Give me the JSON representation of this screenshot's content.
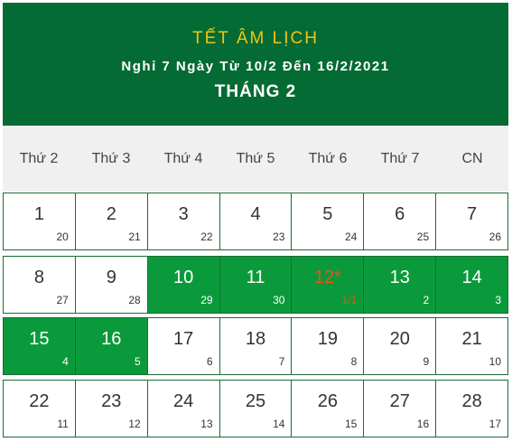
{
  "header": {
    "title": "TẾT ÂM LỊCH",
    "subtitle": "Nghỉ 7 Ngày Từ 10/2 Đến 16/2/2021",
    "month": "THÁNG 2"
  },
  "colors": {
    "header_bg": "#056b34",
    "holiday_bg": "#0b9a3b",
    "title": "#f1c40f",
    "special": "#e8531a"
  },
  "weekdays": [
    "Thứ 2",
    "Thứ 3",
    "Thứ 4",
    "Thứ 5",
    "Thứ 6",
    "Thứ 7",
    "CN"
  ],
  "weeks": [
    [
      {
        "solar": "1",
        "lunar": "20"
      },
      {
        "solar": "2",
        "lunar": "21"
      },
      {
        "solar": "3",
        "lunar": "22"
      },
      {
        "solar": "4",
        "lunar": "23"
      },
      {
        "solar": "5",
        "lunar": "24"
      },
      {
        "solar": "6",
        "lunar": "25"
      },
      {
        "solar": "7",
        "lunar": "26"
      }
    ],
    [
      {
        "solar": "8",
        "lunar": "27"
      },
      {
        "solar": "9",
        "lunar": "28"
      },
      {
        "solar": "10",
        "lunar": "29",
        "holiday": true
      },
      {
        "solar": "11",
        "lunar": "30",
        "holiday": true
      },
      {
        "solar": "12*",
        "lunar": "1/1",
        "holiday": true,
        "special": true
      },
      {
        "solar": "13",
        "lunar": "2",
        "holiday": true
      },
      {
        "solar": "14",
        "lunar": "3",
        "holiday": true
      }
    ],
    [
      {
        "solar": "15",
        "lunar": "4",
        "holiday": true
      },
      {
        "solar": "16",
        "lunar": "5",
        "holiday": true
      },
      {
        "solar": "17",
        "lunar": "6"
      },
      {
        "solar": "18",
        "lunar": "7"
      },
      {
        "solar": "19",
        "lunar": "8"
      },
      {
        "solar": "20",
        "lunar": "9"
      },
      {
        "solar": "21",
        "lunar": "10"
      }
    ],
    [
      {
        "solar": "22",
        "lunar": "11"
      },
      {
        "solar": "23",
        "lunar": "12"
      },
      {
        "solar": "24",
        "lunar": "13"
      },
      {
        "solar": "25",
        "lunar": "14"
      },
      {
        "solar": "26",
        "lunar": "15"
      },
      {
        "solar": "27",
        "lunar": "16"
      },
      {
        "solar": "28",
        "lunar": "17"
      }
    ]
  ]
}
